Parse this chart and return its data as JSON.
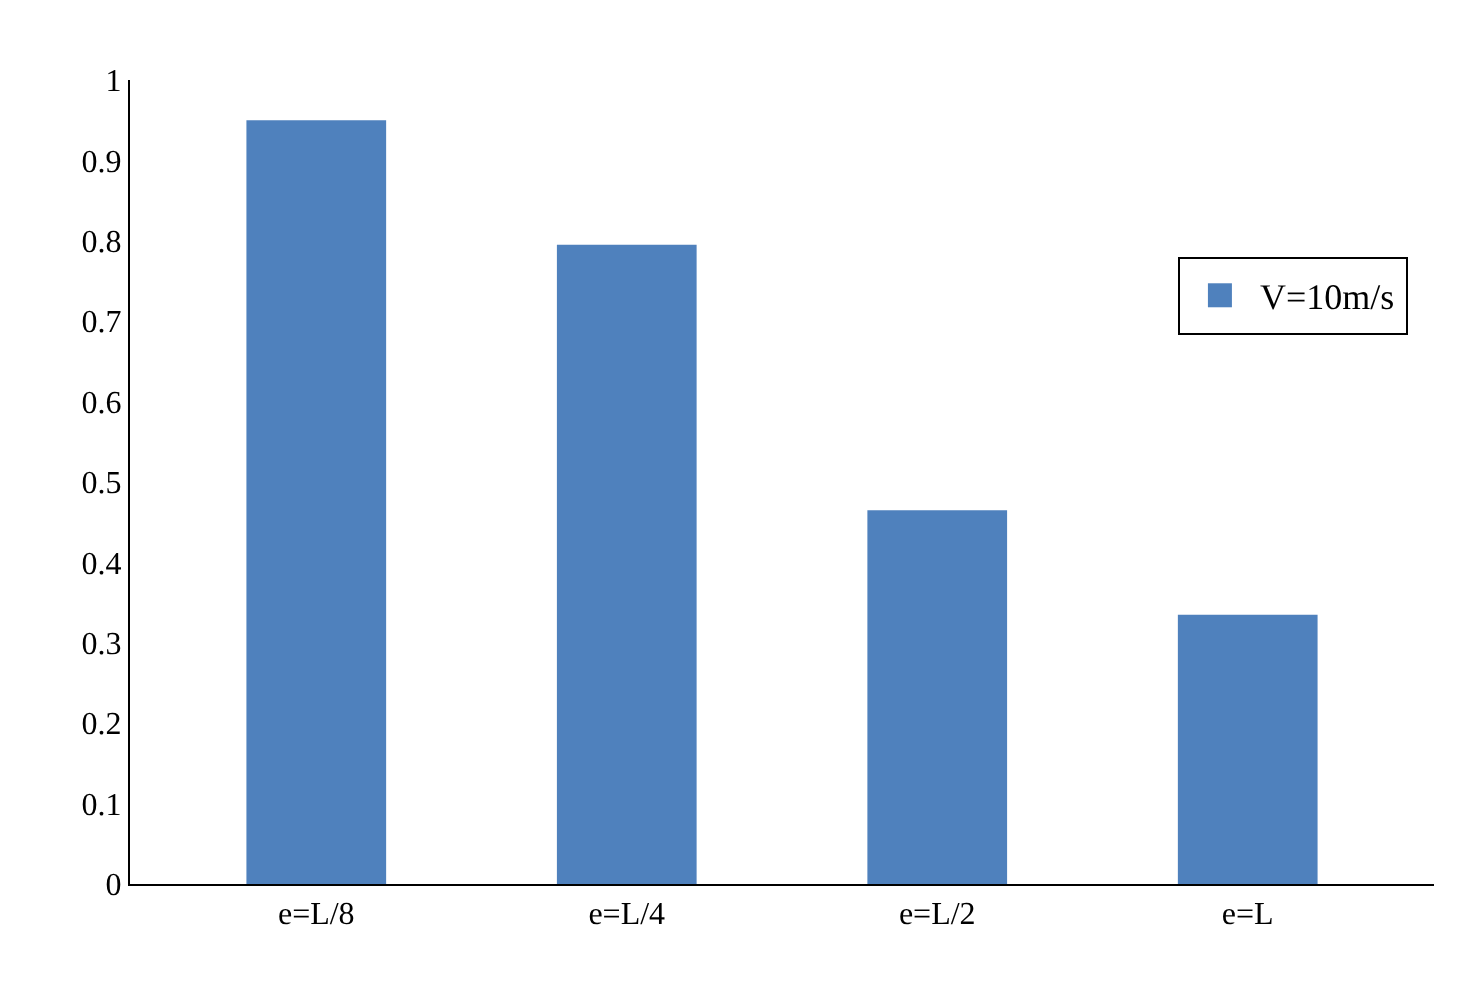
{
  "chart_data": {
    "type": "bar",
    "categories": [
      "e=L/8",
      "e=L/4",
      "e=L/2",
      "e=L"
    ],
    "series": [
      {
        "name": "V=10m/s",
        "color": "#4f81bd",
        "values": [
          0.95,
          0.795,
          0.465,
          0.335
        ]
      }
    ],
    "ylim": [
      0,
      1
    ],
    "yticks": [
      0,
      {
        "value": 0.1,
        "label": "0.1"
      },
      {
        "value": 0.2,
        "label": "0.2"
      },
      {
        "value": 0.3,
        "label": "0.3"
      },
      {
        "value": 0.4,
        "label": "0.4"
      },
      {
        "value": 0.5,
        "label": "0.5"
      },
      {
        "value": 0.6,
        "label": "0.6"
      },
      {
        "value": 0.7,
        "label": "0.7"
      },
      {
        "value": 0.8,
        "label": "0.8"
      },
      {
        "value": 0.9,
        "label": "0.9"
      },
      1
    ],
    "legend": "top right"
  }
}
